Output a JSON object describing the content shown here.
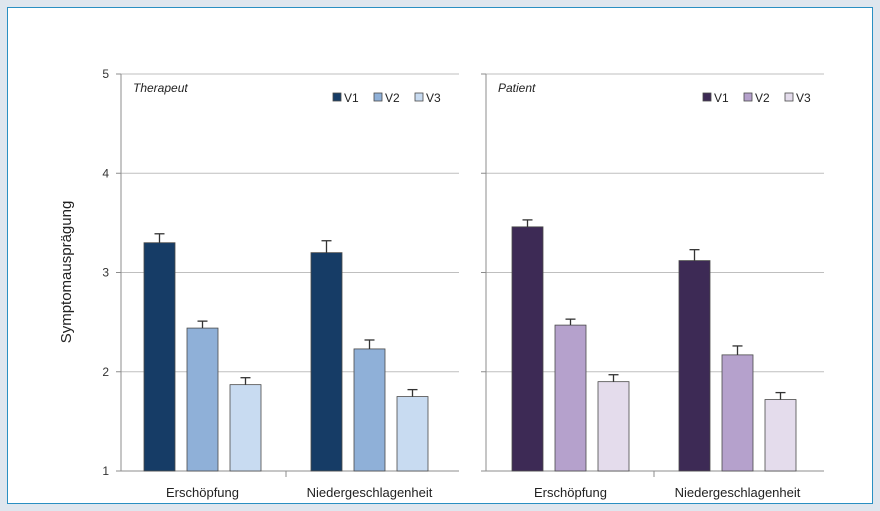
{
  "chart_data": {
    "type": "bar",
    "ylabel": "Symptomausprägung",
    "ylim": [
      1,
      5
    ],
    "yticks": [
      1,
      2,
      3,
      4,
      5
    ],
    "grid": true,
    "legend_position": "top-right",
    "panels": [
      {
        "title": "Therapeut",
        "categories": [
          "Erschöpfung",
          "Niedergeschlagenheit"
        ],
        "series": [
          {
            "name": "V1",
            "values": [
              3.3,
              3.2
            ],
            "errors": [
              0.09,
              0.12
            ],
            "color": "#163c66"
          },
          {
            "name": "V2",
            "values": [
              2.44,
              2.23
            ],
            "errors": [
              0.07,
              0.09
            ],
            "color": "#8fb0d8"
          },
          {
            "name": "V3",
            "values": [
              1.87,
              1.75
            ],
            "errors": [
              0.07,
              0.07
            ],
            "color": "#c8dbf1"
          }
        ]
      },
      {
        "title": "Patient",
        "categories": [
          "Erschöpfung",
          "Niedergeschlagenheit"
        ],
        "series": [
          {
            "name": "V1",
            "values": [
              3.46,
              3.12
            ],
            "errors": [
              0.07,
              0.11
            ],
            "color": "#3d2a55"
          },
          {
            "name": "V2",
            "values": [
              2.47,
              2.17
            ],
            "errors": [
              0.06,
              0.09
            ],
            "color": "#b5a1cc"
          },
          {
            "name": "V3",
            "values": [
              1.9,
              1.72
            ],
            "errors": [
              0.07,
              0.07
            ],
            "color": "#e4dcec"
          }
        ]
      }
    ]
  }
}
